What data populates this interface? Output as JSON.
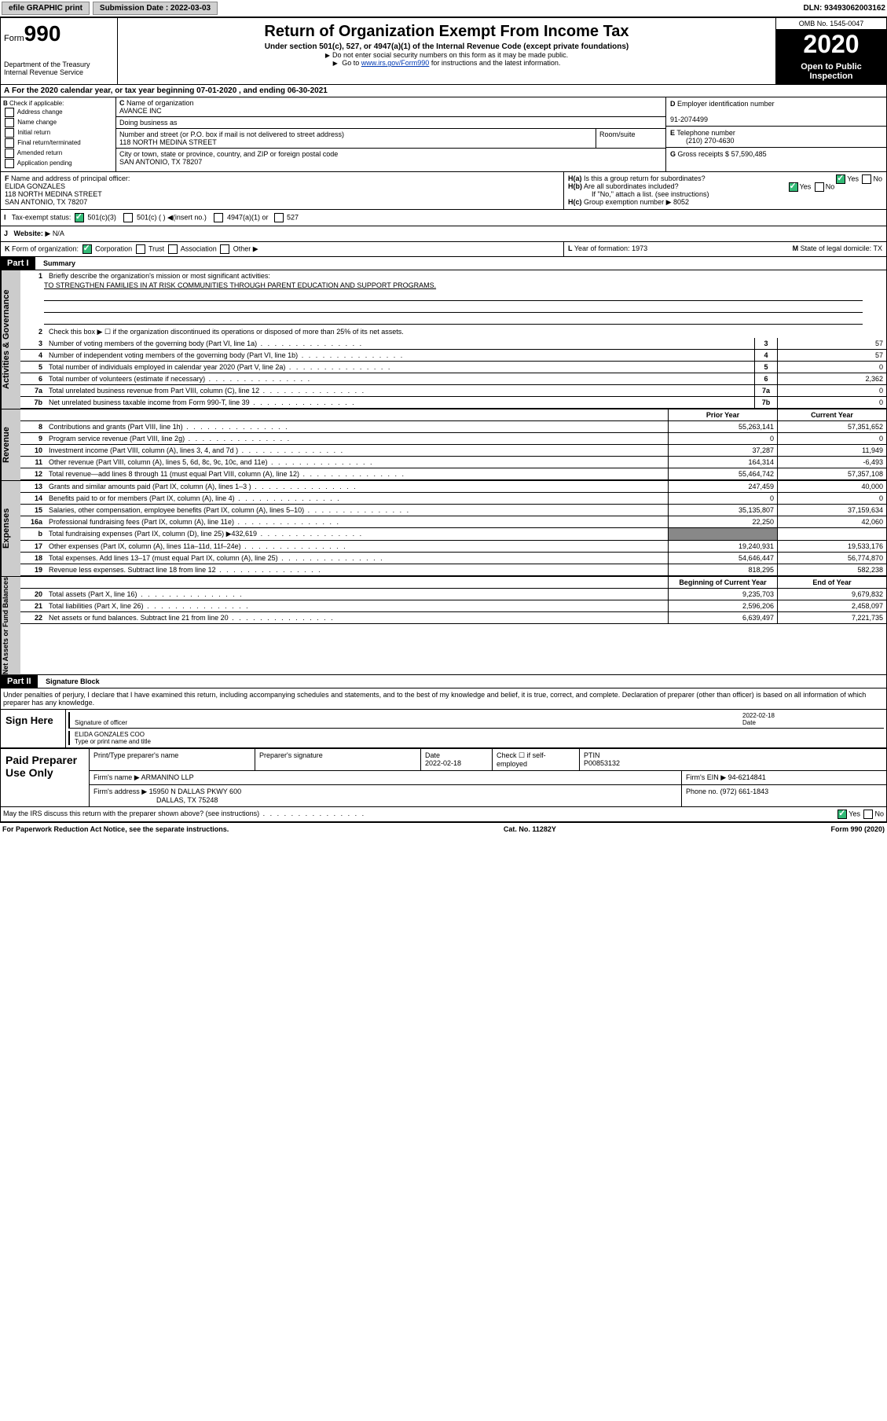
{
  "top": {
    "efile": "efile GRAPHIC print",
    "sub_label": "Submission Date : 2022-03-03",
    "dln": "DLN: 93493062003162"
  },
  "header": {
    "form": "Form",
    "num": "990",
    "dept": "Department of the Treasury\nInternal Revenue Service",
    "title": "Return of Organization Exempt From Income Tax",
    "subtitle": "Under section 501(c), 527, or 4947(a)(1) of the Internal Revenue Code (except private foundations)",
    "note1": "Do not enter social security numbers on this form as it may be made public.",
    "note2_pre": "Go to ",
    "note2_link": "www.irs.gov/Form990",
    "note2_post": " for instructions and the latest information.",
    "omb": "OMB No. 1545-0047",
    "year": "2020",
    "open": "Open to Public Inspection"
  },
  "A": {
    "text": "For the 2020 calendar year, or tax year beginning 07-01-2020    , and ending 06-30-2021"
  },
  "B": {
    "label": "Check if applicable:",
    "opts": [
      "Address change",
      "Name change",
      "Initial return",
      "Final return/terminated",
      "Amended return",
      "Application pending"
    ]
  },
  "C": {
    "name_lbl": "Name of organization",
    "name": "AVANCE INC",
    "dba_lbl": "Doing business as",
    "street_lbl": "Number and street (or P.O. box if mail is not delivered to street address)",
    "room_lbl": "Room/suite",
    "street": "118 NORTH MEDINA STREET",
    "city_lbl": "City or town, state or province, country, and ZIP or foreign postal code",
    "city": "SAN ANTONIO, TX  78207"
  },
  "D": {
    "lbl": "Employer identification number",
    "val": "91-2074499"
  },
  "E": {
    "lbl": "Telephone number",
    "val": "(210) 270-4630"
  },
  "G": {
    "lbl": "Gross receipts $",
    "val": "57,590,485"
  },
  "F": {
    "lbl": "Name and address of principal officer:",
    "name": "ELIDA GONZALES",
    "addr": "118 NORTH MEDINA STREET\nSAN ANTONIO, TX  78207"
  },
  "H": {
    "a": "Is this a group return for subordinates?",
    "b": "Are all subordinates included?",
    "c_lbl": "Group exemption number",
    "c_val": "8052",
    "note": "If \"No,\" attach a list. (see instructions)"
  },
  "I": {
    "lbl": "Tax-exempt status:",
    "opt1": "501(c)(3)",
    "opt2": "501(c) (  ) ",
    "opt2b": "(insert no.)",
    "opt3": "4947(a)(1) or",
    "opt4": "527"
  },
  "J": {
    "lbl": "Website:",
    "val": "N/A"
  },
  "K": {
    "lbl": "Form of organization:",
    "opts": [
      "Corporation",
      "Trust",
      "Association",
      "Other"
    ]
  },
  "L": {
    "lbl": "Year of formation:",
    "val": "1973"
  },
  "M": {
    "lbl": "State of legal domicile:",
    "val": "TX"
  },
  "part1": {
    "title": "Part I",
    "sub": "Summary",
    "side_ag": "Activities & Governance",
    "side_rev": "Revenue",
    "side_exp": "Expenses",
    "side_na": "Net Assets or Fund Balances",
    "q1": "Briefly describe the organization's mission or most significant activities:",
    "mission": "TO STRENGTHEN FAMILIES IN AT RISK COMMUNITIES THROUGH PARENT EDUCATION AND SUPPORT PROGRAMS.",
    "q2": "Check this box ▶ ☐  if the organization discontinued its operations or disposed of more than 25% of its net assets.",
    "lines_ag": [
      {
        "n": "3",
        "t": "Number of voting members of the governing body (Part VI, line 1a)",
        "v": "57"
      },
      {
        "n": "4",
        "t": "Number of independent voting members of the governing body (Part VI, line 1b)",
        "v": "57"
      },
      {
        "n": "5",
        "t": "Total number of individuals employed in calendar year 2020 (Part V, line 2a)",
        "v": "0"
      },
      {
        "n": "6",
        "t": "Total number of volunteers (estimate if necessary)",
        "v": "2,362"
      },
      {
        "n": "7a",
        "t": "Total unrelated business revenue from Part VIII, column (C), line 12",
        "v": "0"
      },
      {
        "n": "7b",
        "t": "Net unrelated business taxable income from Form 990-T, line 39",
        "v": "0"
      }
    ],
    "col_prior": "Prior Year",
    "col_curr": "Current Year",
    "lines_rev": [
      {
        "n": "8",
        "t": "Contributions and grants (Part VIII, line 1h)",
        "p": "55,263,141",
        "c": "57,351,652"
      },
      {
        "n": "9",
        "t": "Program service revenue (Part VIII, line 2g)",
        "p": "0",
        "c": "0"
      },
      {
        "n": "10",
        "t": "Investment income (Part VIII, column (A), lines 3, 4, and 7d )",
        "p": "37,287",
        "c": "11,949"
      },
      {
        "n": "11",
        "t": "Other revenue (Part VIII, column (A), lines 5, 6d, 8c, 9c, 10c, and 11e)",
        "p": "164,314",
        "c": "-6,493"
      },
      {
        "n": "12",
        "t": "Total revenue—add lines 8 through 11 (must equal Part VIII, column (A), line 12)",
        "p": "55,464,742",
        "c": "57,357,108"
      }
    ],
    "lines_exp": [
      {
        "n": "13",
        "t": "Grants and similar amounts paid (Part IX, column (A), lines 1–3 )",
        "p": "247,459",
        "c": "40,000"
      },
      {
        "n": "14",
        "t": "Benefits paid to or for members (Part IX, column (A), line 4)",
        "p": "0",
        "c": "0"
      },
      {
        "n": "15",
        "t": "Salaries, other compensation, employee benefits (Part IX, column (A), lines 5–10)",
        "p": "35,135,807",
        "c": "37,159,634"
      },
      {
        "n": "16a",
        "t": "Professional fundraising fees (Part IX, column (A), line 11e)",
        "p": "22,250",
        "c": "42,060"
      },
      {
        "n": "b",
        "t": "Total fundraising expenses (Part IX, column (D), line 25) ▶432,619",
        "p": "",
        "c": "",
        "shade": true
      },
      {
        "n": "17",
        "t": "Other expenses (Part IX, column (A), lines 11a–11d, 11f–24e)",
        "p": "19,240,931",
        "c": "19,533,176"
      },
      {
        "n": "18",
        "t": "Total expenses. Add lines 13–17 (must equal Part IX, column (A), line 25)",
        "p": "54,646,447",
        "c": "56,774,870"
      },
      {
        "n": "19",
        "t": "Revenue less expenses. Subtract line 18 from line 12",
        "p": "818,295",
        "c": "582,238"
      }
    ],
    "col_beg": "Beginning of Current Year",
    "col_end": "End of Year",
    "lines_na": [
      {
        "n": "20",
        "t": "Total assets (Part X, line 16)",
        "p": "9,235,703",
        "c": "9,679,832"
      },
      {
        "n": "21",
        "t": "Total liabilities (Part X, line 26)",
        "p": "2,596,206",
        "c": "2,458,097"
      },
      {
        "n": "22",
        "t": "Net assets or fund balances. Subtract line 21 from line 20",
        "p": "6,639,497",
        "c": "7,221,735"
      }
    ]
  },
  "part2": {
    "title": "Part II",
    "sub": "Signature Block",
    "decl": "Under penalties of perjury, I declare that I have examined this return, including accompanying schedules and statements, and to the best of my knowledge and belief, it is true, correct, and complete. Declaration of preparer (other than officer) is based on all information of which preparer has any knowledge."
  },
  "sign": {
    "lbl": "Sign Here",
    "sig_lbl": "Signature of officer",
    "date": "2022-02-18",
    "date_lbl": "Date",
    "name": "ELIDA GONZALES COO",
    "name_lbl": "Type or print name and title"
  },
  "prep": {
    "lbl": "Paid Preparer Use Only",
    "h1": "Print/Type preparer's name",
    "h2": "Preparer's signature",
    "h3": "Date",
    "h3v": "2022-02-18",
    "h4": "Check ☐ if self-employed",
    "h5": "PTIN",
    "h5v": "P00853132",
    "firm_lbl": "Firm's name",
    "firm": "ARMANINO LLP",
    "ein_lbl": "Firm's EIN",
    "ein": "94-6214841",
    "addr_lbl": "Firm's address",
    "addr": "15950 N DALLAS PKWY 600",
    "addr2": "DALLAS, TX  75248",
    "phone_lbl": "Phone no.",
    "phone": "(972) 661-1843"
  },
  "discuss": "May the IRS discuss this return with the preparer shown above? (see instructions)",
  "footer": {
    "pra": "For Paperwork Reduction Act Notice, see the separate instructions.",
    "cat": "Cat. No. 11282Y",
    "form": "Form 990 (2020)"
  }
}
